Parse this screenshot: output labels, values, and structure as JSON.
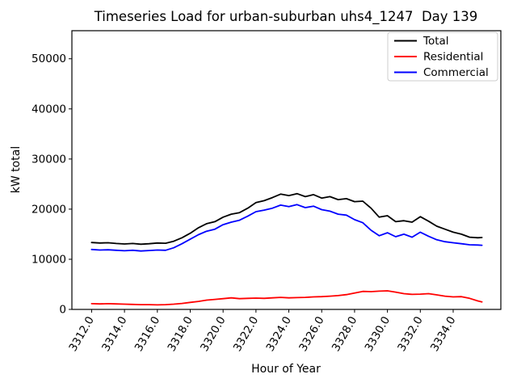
{
  "window": {
    "background": "#ffffff"
  },
  "chart_data": {
    "type": "line",
    "title": "Timeseries Load for urban-suburban uhs4_1247  Day 139",
    "xlabel": "Hour of Year",
    "ylabel": "kW total",
    "xlim": [
      3310.8,
      3336.9
    ],
    "ylim": [
      0,
      55600
    ],
    "grid": false,
    "legend_position": "upper right",
    "xtick_values": [
      3312,
      3314,
      3316,
      3318,
      3320,
      3322,
      3324,
      3326,
      3328,
      3330,
      3332,
      3334
    ],
    "xtick_labels": [
      "3312.0",
      "3314.0",
      "3316.0",
      "3318.0",
      "3320.0",
      "3322.0",
      "3324.0",
      "3326.0",
      "3328.0",
      "3330.0",
      "3332.0",
      "3334.0"
    ],
    "ytick_values": [
      0,
      10000,
      20000,
      30000,
      40000,
      50000
    ],
    "ytick_labels": [
      "0",
      "10000",
      "20000",
      "30000",
      "40000",
      "50000"
    ],
    "x": [
      3312.0,
      3312.5,
      3313.0,
      3313.5,
      3314.0,
      3314.5,
      3315.0,
      3315.5,
      3316.0,
      3316.5,
      3317.0,
      3317.5,
      3318.0,
      3318.5,
      3319.0,
      3319.5,
      3320.0,
      3320.5,
      3321.0,
      3321.5,
      3322.0,
      3322.5,
      3323.0,
      3323.5,
      3324.0,
      3324.5,
      3325.0,
      3325.5,
      3326.0,
      3326.5,
      3327.0,
      3327.5,
      3328.0,
      3328.5,
      3329.0,
      3329.5,
      3330.0,
      3330.5,
      3331.0,
      3331.5,
      3332.0,
      3332.5,
      3333.0,
      3333.5,
      3334.0,
      3334.5,
      3335.0,
      3335.5,
      3335.75
    ],
    "series": [
      {
        "label": "Total",
        "color": "#000000",
        "values": [
          13350,
          13250,
          13300,
          13150,
          13050,
          13150,
          13000,
          13100,
          13250,
          13200,
          13600,
          14300,
          15200,
          16300,
          17100,
          17500,
          18400,
          19000,
          19300,
          20200,
          21300,
          21700,
          22300,
          23000,
          22700,
          23100,
          22500,
          22900,
          22200,
          22500,
          21900,
          22100,
          21500,
          21600,
          20200,
          18400,
          18700,
          17500,
          17700,
          17400,
          18500,
          17600,
          16600,
          16000,
          15400,
          15000,
          14400,
          14300,
          14350
        ]
      },
      {
        "label": "Residential",
        "color": "#ff0000",
        "values": [
          1150,
          1100,
          1150,
          1100,
          1050,
          1000,
          950,
          950,
          900,
          950,
          1050,
          1200,
          1400,
          1600,
          1850,
          2000,
          2150,
          2300,
          2150,
          2200,
          2250,
          2200,
          2300,
          2400,
          2300,
          2350,
          2400,
          2500,
          2550,
          2650,
          2750,
          2950,
          3250,
          3600,
          3550,
          3650,
          3700,
          3450,
          3150,
          3000,
          3050,
          3150,
          2900,
          2650,
          2500,
          2550,
          2200,
          1700,
          1500
        ]
      },
      {
        "label": "Commercial",
        "color": "#0000ff",
        "values": [
          11950,
          11850,
          11900,
          11800,
          11700,
          11800,
          11650,
          11750,
          11850,
          11800,
          12300,
          13100,
          14000,
          14900,
          15600,
          16000,
          16900,
          17400,
          17800,
          18600,
          19500,
          19800,
          20200,
          20800,
          20500,
          20900,
          20300,
          20600,
          19900,
          19600,
          19000,
          18800,
          17900,
          17300,
          15800,
          14700,
          15300,
          14500,
          15000,
          14400,
          15400,
          14600,
          13900,
          13500,
          13300,
          13100,
          12900,
          12850,
          12800
        ]
      }
    ]
  }
}
